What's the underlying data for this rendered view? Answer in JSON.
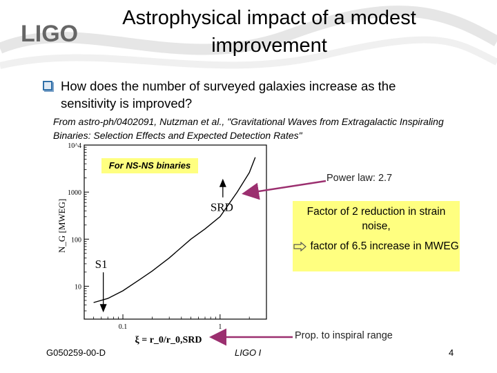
{
  "logo": {
    "text": "LIGO"
  },
  "title": {
    "line1": "Astrophysical impact of a modest",
    "line2": "improvement"
  },
  "bullet": {
    "text": "How does the number of surveyed galaxies increase as the sensitivity is improved?"
  },
  "source": {
    "text": "From astro-ph/0402091, Nutzman et al., \"Gravitational Waves from Extragalactic Inspiraling Binaries: Selection Effects and Expected Detection Rates\""
  },
  "callouts": {
    "nsns": "For NS-NS binaries",
    "power_law": "Power law: 2.7",
    "factor_line1": "Factor of 2 reduction in strain noise,",
    "factor_line2": "factor of 6.5 increase in MWEG",
    "prop": "Prop. to inspiral range"
  },
  "chart_data": {
    "type": "line",
    "xscale": "log",
    "yscale": "log",
    "xlim": [
      0.04,
      3
    ],
    "ylim": [
      2,
      10000
    ],
    "xticks": [
      "0.1",
      "1"
    ],
    "yticks": [
      "10",
      "100",
      "1000",
      "10^4"
    ],
    "ylabel": "N_G [MWEG]",
    "xlabel": "ξ = r_0/r_0,SRD",
    "series": [
      {
        "name": "N_G vs ξ",
        "x": [
          0.05,
          0.07,
          0.1,
          0.15,
          0.2,
          0.3,
          0.5,
          0.7,
          1.0,
          1.5,
          2.0,
          2.3
        ],
        "y": [
          4.5,
          5.5,
          8,
          14,
          21,
          40,
          100,
          165,
          300,
          1000,
          2600,
          5500
        ]
      }
    ],
    "annotations": [
      {
        "label": "S1",
        "x": 0.05,
        "y": 2.6
      },
      {
        "label": "SRD",
        "x": 1.0,
        "y": 300
      }
    ]
  },
  "footer": {
    "doc_id": "G050259-00-D",
    "center": "LIGO I",
    "page": "4"
  },
  "colors": {
    "highlight": "#ffff80",
    "arrow": "#9b2f6f",
    "swirl": "#e6e6e6"
  }
}
